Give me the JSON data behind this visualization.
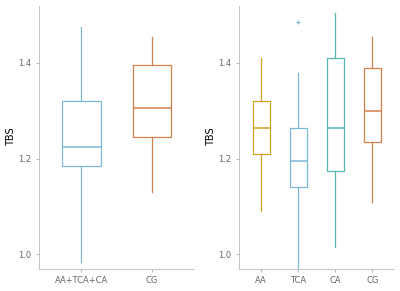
{
  "left_plot": {
    "boxes": [
      {
        "label": "AA+TCA+CA",
        "q1": 1.185,
        "median": 1.225,
        "q3": 1.32,
        "whisker_low": 0.985,
        "whisker_high": 1.475,
        "color": "#7db8d4"
      },
      {
        "label": "CG",
        "q1": 1.245,
        "median": 1.305,
        "q3": 1.395,
        "whisker_low": 1.13,
        "whisker_high": 1.455,
        "color": "#d4804a"
      }
    ],
    "ylabel": "TBS",
    "ylim": [
      0.97,
      1.52
    ],
    "yticks": [
      1.0,
      1.2,
      1.4
    ]
  },
  "right_plot": {
    "boxes": [
      {
        "label": "AA",
        "q1": 1.21,
        "median": 1.265,
        "q3": 1.32,
        "whisker_low": 1.09,
        "whisker_high": 1.41,
        "color": "#d4a020"
      },
      {
        "label": "TCA",
        "q1": 1.14,
        "median": 1.195,
        "q3": 1.265,
        "whisker_low": 0.965,
        "whisker_high": 1.38,
        "outlier": 1.485,
        "color": "#7db8d4"
      },
      {
        "label": "CA",
        "q1": 1.175,
        "median": 1.265,
        "q3": 1.41,
        "whisker_low": 1.015,
        "whisker_high": 1.505,
        "color": "#55b8b0"
      },
      {
        "label": "CG",
        "q1": 1.235,
        "median": 1.3,
        "q3": 1.39,
        "whisker_low": 1.11,
        "whisker_high": 1.455,
        "color": "#d4804a"
      }
    ],
    "ylabel": "TBS",
    "ylim": [
      0.97,
      1.52
    ],
    "yticks": [
      1.0,
      1.2,
      1.4
    ]
  },
  "background_color": "#ffffff",
  "figsize": [
    4.0,
    2.91
  ],
  "dpi": 100
}
